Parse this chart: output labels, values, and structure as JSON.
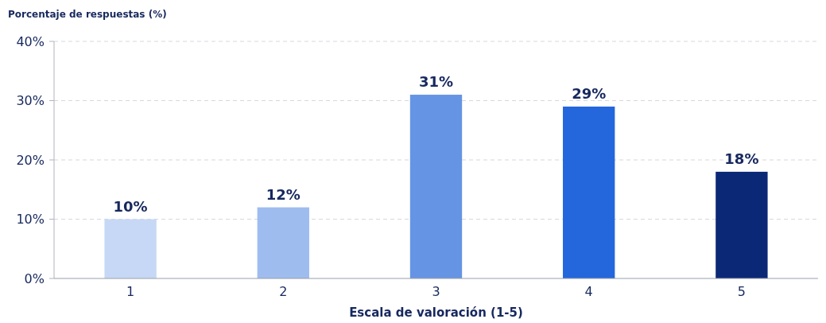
{
  "chart_data": {
    "type": "bar",
    "ylabel": "Porcentaje de respuestas (%)",
    "xlabel": "Escala de valoración (1-5)",
    "categories": [
      "1",
      "2",
      "3",
      "4",
      "5"
    ],
    "values": [
      10,
      12,
      31,
      29,
      18
    ],
    "colors": [
      "#c6d8f5",
      "#9fbcef",
      "#6694e4",
      "#2466dc",
      "#0b2877"
    ],
    "ylim": [
      0,
      40
    ],
    "yticks": [
      {
        "value": 0,
        "label": "0%"
      },
      {
        "value": 10,
        "label": "10%"
      },
      {
        "value": 20,
        "label": "20%"
      },
      {
        "value": 30,
        "label": "30%"
      },
      {
        "value": 40,
        "label": "40%"
      }
    ],
    "value_labels": [
      "10%",
      "12%",
      "31%",
      "29%",
      "18%"
    ],
    "grid": "y"
  }
}
